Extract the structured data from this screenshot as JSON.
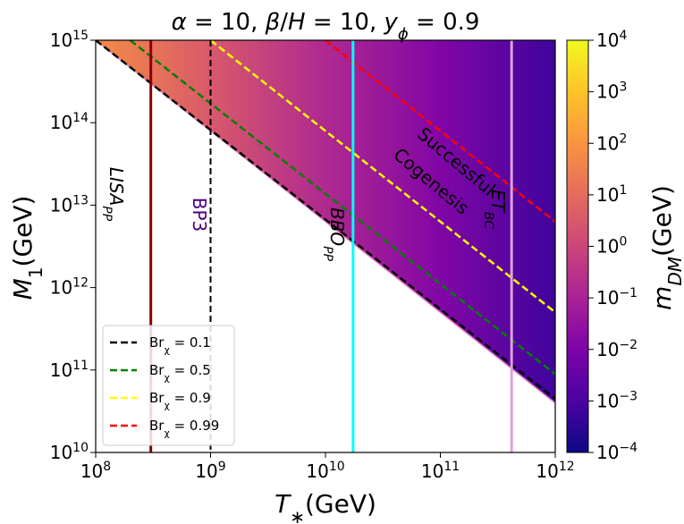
{
  "chart_data": {
    "type": "heatmap",
    "title": "α = 10,  β/H = 10,  yϕ = 0.9",
    "xlabel": "T∗(GeV)",
    "ylabel": "M1(GeV)",
    "x_scale": "log",
    "y_scale": "log",
    "xlim": [
      100000000.0,
      1000000000000.0
    ],
    "ylim": [
      10000000000.0,
      1000000000000000.0
    ],
    "x_ticks": [
      {
        "exp": 8,
        "label": "10",
        "sup": "8"
      },
      {
        "exp": 9,
        "label": "10",
        "sup": "9"
      },
      {
        "exp": 10,
        "label": "10",
        "sup": "10"
      },
      {
        "exp": 11,
        "label": "10",
        "sup": "11"
      },
      {
        "exp": 12,
        "label": "10",
        "sup": "12"
      }
    ],
    "y_ticks": [
      {
        "exp": 10,
        "label": "10",
        "sup": "10"
      },
      {
        "exp": 11,
        "label": "10",
        "sup": "11"
      },
      {
        "exp": 12,
        "label": "10",
        "sup": "12"
      },
      {
        "exp": 13,
        "label": "10",
        "sup": "13"
      },
      {
        "exp": 14,
        "label": "10",
        "sup": "14"
      },
      {
        "exp": 15,
        "label": "10",
        "sup": "15"
      }
    ],
    "colorbar": {
      "label": "mDM(GeV)",
      "range_log10": [
        -4,
        4
      ],
      "colormap": "plasma",
      "ticks": [
        {
          "exp": 4,
          "label": "10",
          "sup": "4"
        },
        {
          "exp": 3,
          "label": "10",
          "sup": "3"
        },
        {
          "exp": 2,
          "label": "10",
          "sup": "2"
        },
        {
          "exp": 1,
          "label": "10",
          "sup": "1"
        },
        {
          "exp": 0,
          "label": "10",
          "sup": "0"
        },
        {
          "exp": -1,
          "label": "10",
          "sup": "−1"
        },
        {
          "exp": -2,
          "label": "10",
          "sup": "−2"
        },
        {
          "exp": -3,
          "label": "10",
          "sup": "−3"
        },
        {
          "exp": -4,
          "label": "10",
          "sup": "−4"
        }
      ]
    },
    "region_boundary": {
      "description": "colored region lies above this line",
      "log10_points": [
        [
          8.0,
          15.0
        ],
        [
          12.0,
          10.6
        ]
      ]
    },
    "heatmap_color_gradient_log10_mdm": [
      {
        "log10_T": 8.0,
        "log10_mdm": 1.8
      },
      {
        "log10_T": 9.0,
        "log10_mdm": 0.5
      },
      {
        "log10_T": 10.0,
        "log10_mdm": -0.8
      },
      {
        "log10_T": 11.0,
        "log10_mdm": -1.9
      },
      {
        "log10_T": 12.0,
        "log10_mdm": -3.2
      }
    ],
    "series": [
      {
        "name": "Brχ = 0.1",
        "label": "Br",
        "sub": "χ",
        "value_text": " = 0.1",
        "color": "#000000",
        "style": "dashed",
        "log10_points": [
          [
            8.0,
            15.0
          ],
          [
            12.0,
            10.65
          ]
        ]
      },
      {
        "name": "Brχ = 0.5",
        "label": "Br",
        "sub": "χ",
        "value_text": " = 0.5",
        "color": "#008000",
        "style": "dashed",
        "log10_points": [
          [
            8.3,
            15.0
          ],
          [
            12.0,
            10.95
          ]
        ]
      },
      {
        "name": "Brχ = 0.9",
        "label": "Br",
        "sub": "χ",
        "value_text": " = 0.9",
        "color": "#ffff00",
        "style": "dashed",
        "log10_points": [
          [
            9.0,
            15.0
          ],
          [
            12.0,
            11.7
          ]
        ]
      },
      {
        "name": "Brχ = 0.99",
        "label": "Br",
        "sub": "χ",
        "value_text": " = 0.99",
        "color": "#ff0000",
        "style": "dashed",
        "log10_points": [
          [
            10.0,
            15.0
          ],
          [
            12.0,
            12.8
          ]
        ]
      }
    ],
    "vertical_lines": [
      {
        "name": "LISA_PP",
        "log10_T": 8.48,
        "color": "#8b0000",
        "style": "solid"
      },
      {
        "name": "BP3",
        "log10_T": 9.0,
        "color": "#000000",
        "style": "dashed"
      },
      {
        "name": "BBO_PP",
        "log10_T": 10.24,
        "color": "#00ffff",
        "style": "solid"
      },
      {
        "name": "ET_BC",
        "log10_T": 11.62,
        "color": "#dda0dd",
        "style": "solid"
      }
    ],
    "annotations": [
      {
        "id": "lisa",
        "text": "LISA",
        "sub": "PP",
        "color": "#000000",
        "italic": true
      },
      {
        "id": "bp3",
        "text": "BP3",
        "sub": "",
        "color": "#4b0082",
        "italic": false
      },
      {
        "id": "bbo",
        "text": "BBO",
        "sub": "PP",
        "color": "#000000",
        "italic": true
      },
      {
        "id": "et",
        "text": "ET",
        "sub": "BC",
        "color": "#000000",
        "italic": true
      },
      {
        "id": "succ1",
        "text": "Successful",
        "sub": "",
        "color": "#000000",
        "italic": false
      },
      {
        "id": "succ2",
        "text": "Cogenesis",
        "sub": "",
        "color": "#000000",
        "italic": false
      }
    ],
    "legend_position": "lower-left"
  }
}
